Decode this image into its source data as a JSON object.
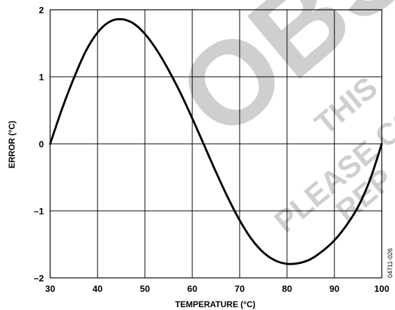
{
  "chart_data": {
    "type": "line",
    "xlabel": "TEMPERATURE (°C)",
    "ylabel": "ERROR (°C)",
    "xlim": [
      30,
      100
    ],
    "ylim": [
      -2,
      2
    ],
    "x_ticks": [
      30,
      40,
      50,
      60,
      70,
      80,
      90,
      100
    ],
    "y_ticks": [
      {
        "value": 2,
        "label": "2"
      },
      {
        "value": 1,
        "label": "1"
      },
      {
        "value": 0,
        "label": "0"
      },
      {
        "value": -1,
        "label": "–1"
      },
      {
        "value": -2,
        "label": "–2"
      }
    ],
    "grid": true,
    "series": [
      {
        "color": "#000000",
        "x": [
          30,
          32.5,
          35,
          37.5,
          40,
          42.5,
          45,
          47.5,
          50,
          52.5,
          55,
          57.5,
          60,
          62.5,
          65,
          67.5,
          70,
          72.5,
          75,
          77.5,
          80,
          82.5,
          85,
          87.5,
          90,
          92.5,
          95,
          97.5,
          100
        ],
        "y": [
          0,
          0.52,
          0.98,
          1.38,
          1.66,
          1.82,
          1.86,
          1.8,
          1.64,
          1.4,
          1.1,
          0.76,
          0.38,
          -0.02,
          -0.42,
          -0.8,
          -1.14,
          -1.42,
          -1.62,
          -1.74,
          -1.79,
          -1.78,
          -1.72,
          -1.6,
          -1.44,
          -1.22,
          -0.94,
          -0.54,
          0
        ]
      }
    ]
  },
  "watermark": {
    "big": "OBS",
    "line1": "THIS",
    "line2": "PLEASE CO",
    "line3": "REP"
  },
  "figure_code": "04711-026"
}
